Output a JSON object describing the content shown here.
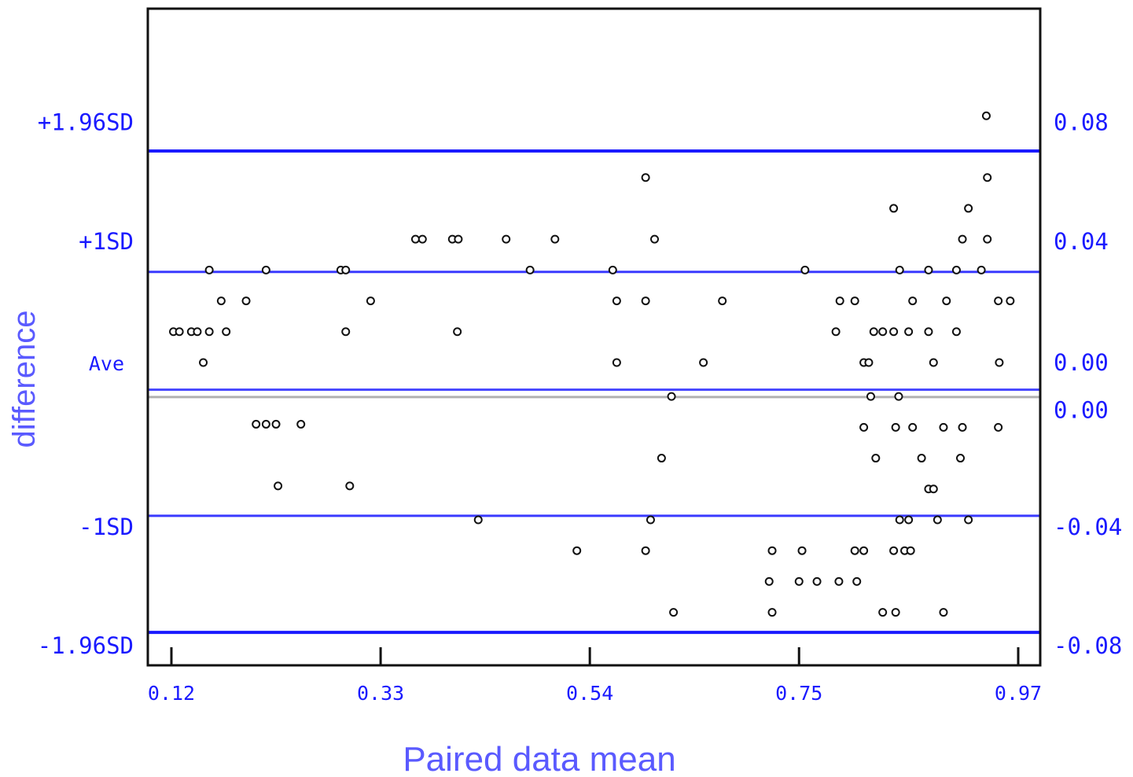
{
  "chart_data": {
    "type": "scatter",
    "xlabel": "Paired data mean",
    "ylabel": "difference",
    "xlim": [
      0.1,
      0.98
    ],
    "ylim": [
      -0.125,
      0.125
    ],
    "x_ticks": [
      "0.12",
      "0.33",
      "0.54",
      "0.75",
      "0.97"
    ],
    "x_tick_values": [
      0.12,
      0.33,
      0.54,
      0.75,
      0.97
    ],
    "left_labels": [
      {
        "text": "+1.96SD",
        "y": 0.0776
      },
      {
        "text": "+1SD",
        "y": 0.039
      },
      {
        "text": "Ave",
        "y": -0.0003
      },
      {
        "text": "-1SD",
        "y": -0.0536
      },
      {
        "text": "-1.96SD",
        "y": -0.092
      }
    ],
    "right_labels": [
      {
        "text": "0.08",
        "y": 0.0776
      },
      {
        "text": "0.04",
        "y": 0.039
      },
      {
        "text": "0.00",
        "y": -0.0003
      },
      {
        "text": "0.00",
        "y": -0.0157
      },
      {
        "text": "-0.04",
        "y": -0.0536
      },
      {
        "text": "-0.08",
        "y": -0.092
      }
    ],
    "reference_lines": [
      {
        "name": "+1.96SD",
        "y": 0.0686,
        "color": "#1a1aff",
        "weight": "bold"
      },
      {
        "name": "+1SD",
        "y": 0.0294,
        "color": "#3a3aff",
        "weight": "normal"
      },
      {
        "name": "Ave",
        "y": -0.0088,
        "color": "#4a4aff",
        "weight": "normal"
      },
      {
        "name": "mean",
        "y": -0.0112,
        "color": "#b0b0b0",
        "weight": "normal"
      },
      {
        "name": "-1SD",
        "y": -0.0497,
        "color": "#3a3aff",
        "weight": "normal"
      },
      {
        "name": "-1.96SD",
        "y": -0.0875,
        "color": "#1a1aff",
        "weight": "bold"
      }
    ],
    "grid": false,
    "points": [
      [
        0.122,
        0.01
      ],
      [
        0.128,
        0.01
      ],
      [
        0.14,
        0.01
      ],
      [
        0.146,
        0.01
      ],
      [
        0.152,
        0.0
      ],
      [
        0.158,
        0.03
      ],
      [
        0.158,
        0.01
      ],
      [
        0.17,
        0.02
      ],
      [
        0.175,
        0.01
      ],
      [
        0.195,
        0.02
      ],
      [
        0.205,
        -0.02
      ],
      [
        0.215,
        0.03
      ],
      [
        0.215,
        -0.02
      ],
      [
        0.225,
        -0.02
      ],
      [
        0.227,
        -0.04
      ],
      [
        0.25,
        -0.02
      ],
      [
        0.29,
        0.03
      ],
      [
        0.295,
        0.03
      ],
      [
        0.295,
        0.01
      ],
      [
        0.299,
        -0.04
      ],
      [
        0.32,
        0.02
      ],
      [
        0.365,
        0.04
      ],
      [
        0.372,
        0.04
      ],
      [
        0.402,
        0.04
      ],
      [
        0.408,
        0.04
      ],
      [
        0.407,
        0.01
      ],
      [
        0.428,
        -0.051
      ],
      [
        0.456,
        0.04
      ],
      [
        0.48,
        0.03
      ],
      [
        0.505,
        0.04
      ],
      [
        0.527,
        -0.061
      ],
      [
        0.563,
        0.03
      ],
      [
        0.567,
        0.02
      ],
      [
        0.567,
        0.0
      ],
      [
        0.596,
        0.06
      ],
      [
        0.596,
        0.02
      ],
      [
        0.596,
        -0.061
      ],
      [
        0.601,
        -0.051
      ],
      [
        0.605,
        0.04
      ],
      [
        0.612,
        -0.031
      ],
      [
        0.622,
        -0.011
      ],
      [
        0.624,
        -0.081
      ],
      [
        0.654,
        0.0
      ],
      [
        0.673,
        0.02
      ],
      [
        0.72,
        -0.071
      ],
      [
        0.723,
        -0.061
      ],
      [
        0.723,
        -0.081
      ],
      [
        0.75,
        -0.071
      ],
      [
        0.753,
        -0.061
      ],
      [
        0.756,
        0.03
      ],
      [
        0.768,
        -0.071
      ],
      [
        0.787,
        0.01
      ],
      [
        0.791,
        0.02
      ],
      [
        0.79,
        -0.071
      ],
      [
        0.806,
        0.02
      ],
      [
        0.806,
        -0.061
      ],
      [
        0.808,
        -0.071
      ],
      [
        0.815,
        0.0
      ],
      [
        0.815,
        -0.061
      ],
      [
        0.815,
        -0.021
      ],
      [
        0.82,
        0.0
      ],
      [
        0.822,
        -0.011
      ],
      [
        0.825,
        0.01
      ],
      [
        0.827,
        -0.031
      ],
      [
        0.834,
        0.01
      ],
      [
        0.834,
        -0.081
      ],
      [
        0.845,
        0.05
      ],
      [
        0.845,
        0.01
      ],
      [
        0.845,
        -0.061
      ],
      [
        0.847,
        -0.081
      ],
      [
        0.847,
        -0.021
      ],
      [
        0.85,
        -0.011
      ],
      [
        0.851,
        -0.051
      ],
      [
        0.851,
        0.03
      ],
      [
        0.856,
        -0.061
      ],
      [
        0.86,
        -0.051
      ],
      [
        0.86,
        0.01
      ],
      [
        0.862,
        -0.061
      ],
      [
        0.864,
        0.02
      ],
      [
        0.864,
        -0.021
      ],
      [
        0.873,
        -0.031
      ],
      [
        0.88,
        0.01
      ],
      [
        0.88,
        0.03
      ],
      [
        0.88,
        -0.041
      ],
      [
        0.885,
        0.0
      ],
      [
        0.885,
        -0.041
      ],
      [
        0.889,
        -0.051
      ],
      [
        0.895,
        -0.021
      ],
      [
        0.895,
        -0.081
      ],
      [
        0.898,
        0.02
      ],
      [
        0.908,
        0.03
      ],
      [
        0.908,
        0.01
      ],
      [
        0.912,
        -0.031
      ],
      [
        0.914,
        0.04
      ],
      [
        0.914,
        -0.021
      ],
      [
        0.92,
        0.05
      ],
      [
        0.92,
        -0.051
      ],
      [
        0.933,
        0.03
      ],
      [
        0.938,
        0.08
      ],
      [
        0.939,
        0.06
      ],
      [
        0.939,
        0.04
      ],
      [
        0.95,
        0.02
      ],
      [
        0.951,
        0.0
      ],
      [
        0.95,
        -0.021
      ],
      [
        0.962,
        0.02
      ]
    ]
  }
}
